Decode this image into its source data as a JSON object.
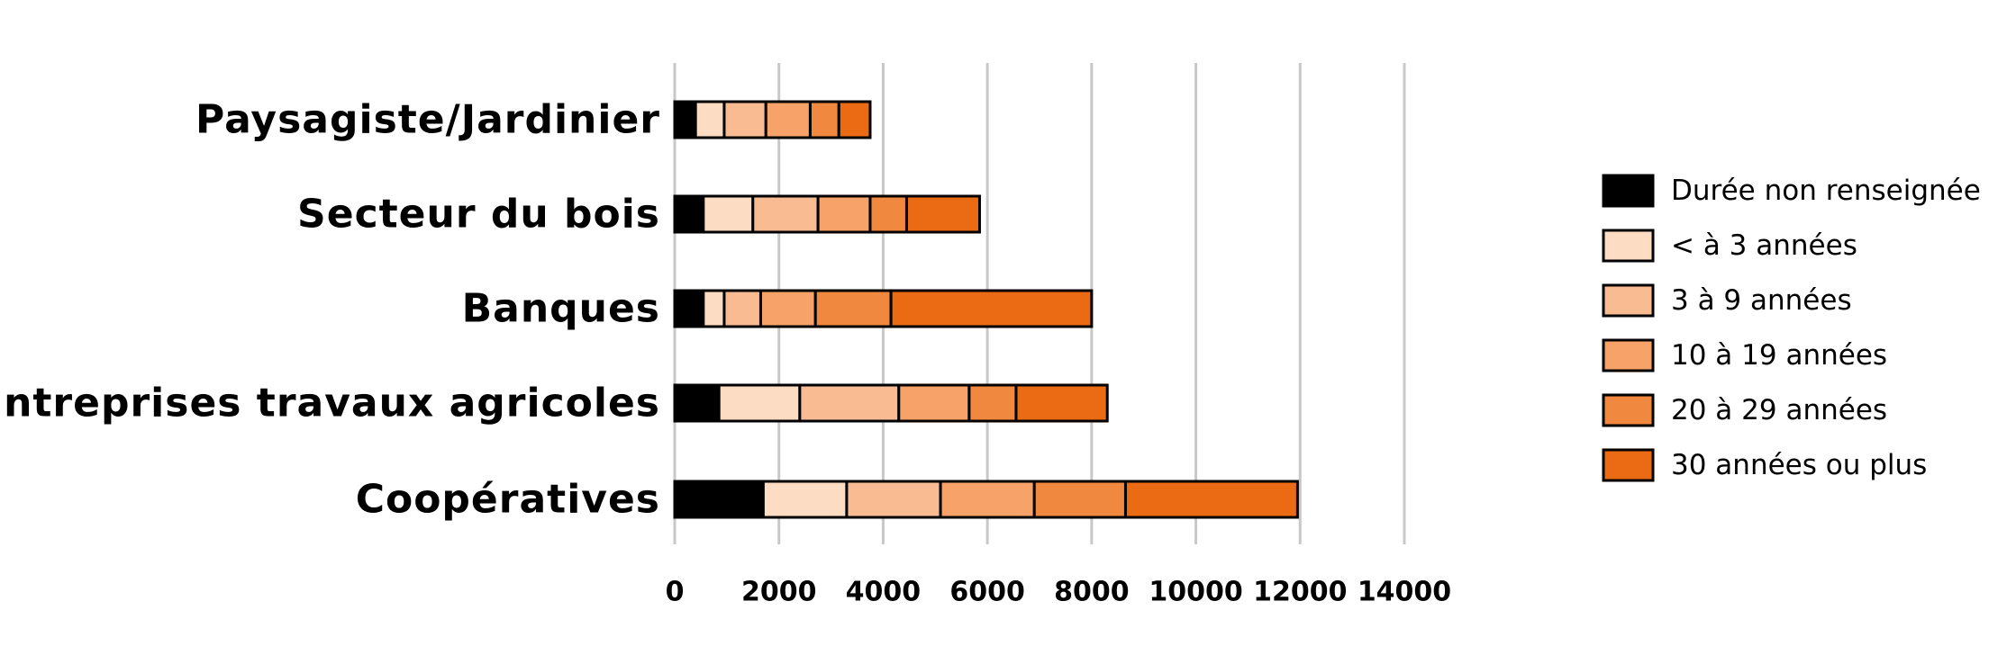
{
  "chart_data": {
    "type": "bar",
    "orientation": "horizontal",
    "stacked": true,
    "categories": [
      "Paysagiste/Jardinier",
      "Secteur du bois",
      "Banques",
      "Entreprises travaux agricoles",
      "Coopératives"
    ],
    "series": [
      {
        "name": "Durée non renseignée",
        "color": "#000000",
        "values": [
          400,
          550,
          550,
          850,
          1700
        ]
      },
      {
        "name": "< à 3 années",
        "color": "#fcdcc3",
        "values": [
          550,
          950,
          400,
          1550,
          1600
        ]
      },
      {
        "name": "3 à 9 années",
        "color": "#f9bc92",
        "values": [
          800,
          1250,
          700,
          1900,
          1800
        ]
      },
      {
        "name": "10 à 19 années",
        "color": "#f6a268",
        "values": [
          850,
          1000,
          1050,
          1350,
          1800
        ]
      },
      {
        "name": "20 à 29 années",
        "color": "#f1883f",
        "values": [
          550,
          700,
          1450,
          900,
          1750
        ]
      },
      {
        "name": "30 années ou plus",
        "color": "#eb6a14",
        "values": [
          600,
          1400,
          3850,
          1750,
          3300
        ]
      }
    ],
    "xlim": [
      0,
      14000
    ],
    "xticks": [
      "0",
      "2000",
      "4000",
      "6000",
      "8000",
      "10000",
      "12000",
      "14000"
    ],
    "title": "",
    "xlabel": "",
    "ylabel": "",
    "grid": true,
    "legend_position": "right"
  }
}
